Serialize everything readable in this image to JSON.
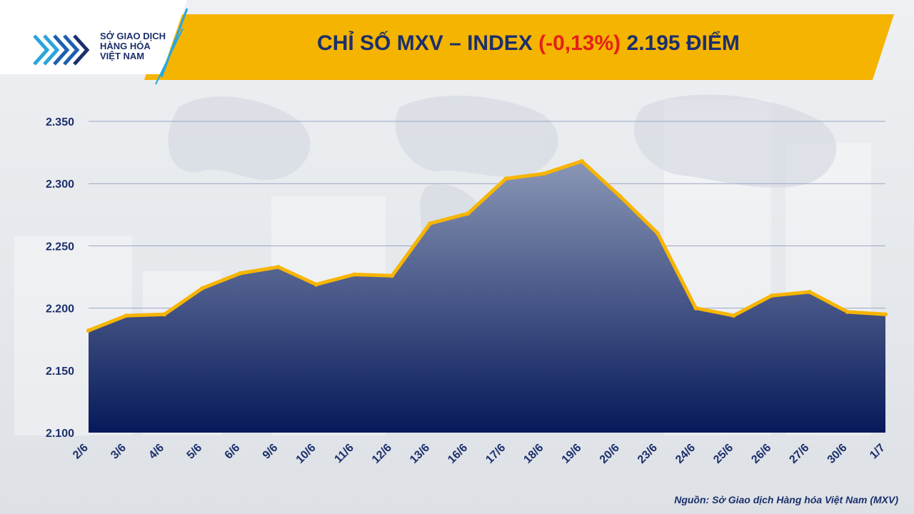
{
  "header": {
    "logo_line1": "SỞ GIAO DỊCH",
    "logo_line2": "HÀNG HÓA",
    "logo_line3": "VIỆT NAM",
    "title_prefix": "CHỈ SỐ MXV – INDEX",
    "title_change": "(-0,13%)",
    "title_value": "2.195 ĐIỂM"
  },
  "source": "Nguồn: Sở Giao dịch Hàng hóa Việt Nam (MXV)",
  "colors": {
    "title": "#1c2f6b",
    "change": "#e32119",
    "banner": "#f4b400",
    "line": "#f7b500",
    "area_top": "#8a97b6",
    "area_bottom": "#07195a",
    "gridline": "#9aa6c4"
  },
  "chart_data": {
    "type": "area",
    "title": "CHỈ SỐ MXV – INDEX (-0,13%) 2.195 ĐIỂM",
    "xlabel": "",
    "ylabel": "",
    "ylim": [
      2100,
      2350
    ],
    "yticks": [
      2100,
      2150,
      2200,
      2250,
      2300,
      2350
    ],
    "ytick_labels": [
      "2.100",
      "2.150",
      "2.200",
      "2.250",
      "2.300",
      "2.350"
    ],
    "grid": true,
    "legend": "none",
    "categories": [
      "2/6",
      "3/6",
      "4/6",
      "5/6",
      "6/6",
      "9/6",
      "10/6",
      "11/6",
      "12/6",
      "13/6",
      "16/6",
      "17/6",
      "18/6",
      "19/6",
      "20/6",
      "23/6",
      "24/6",
      "25/6",
      "26/6",
      "27/6",
      "30/6",
      "1/7"
    ],
    "series": [
      {
        "values": [
          2182,
          2194,
          2195,
          2216,
          2228,
          2233,
          2219,
          2227,
          2226,
          2268,
          2276,
          2304,
          2308,
          2318,
          2290,
          2260,
          2200,
          2194,
          2210,
          2213,
          2197,
          2195
        ]
      }
    ]
  }
}
